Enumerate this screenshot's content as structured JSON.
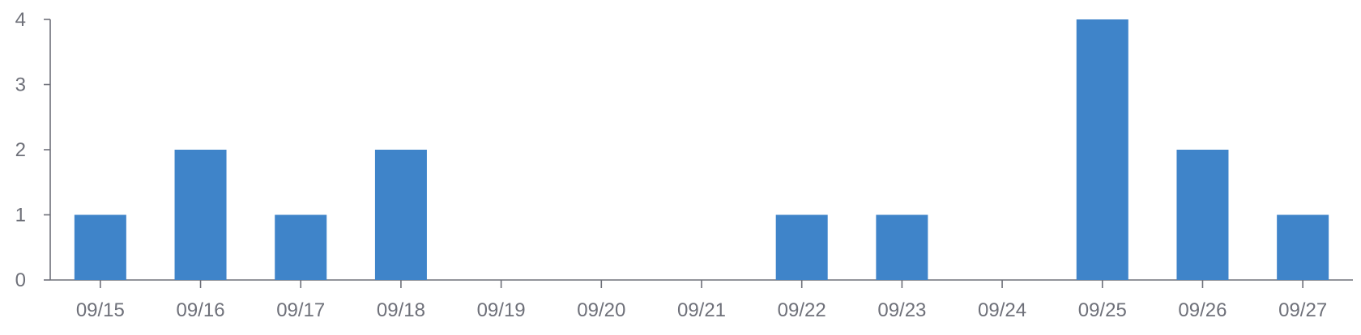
{
  "chart_data": {
    "type": "bar",
    "title": "",
    "xlabel": "",
    "ylabel": "",
    "categories": [
      "09/15",
      "09/16",
      "09/17",
      "09/18",
      "09/19",
      "09/20",
      "09/21",
      "09/22",
      "09/23",
      "09/24",
      "09/25",
      "09/26",
      "09/27"
    ],
    "values": [
      1,
      2,
      1,
      2,
      0,
      0,
      0,
      1,
      1,
      0,
      4,
      2,
      1
    ],
    "ylim": [
      0,
      4
    ],
    "yticks": [
      0,
      1,
      2,
      3,
      4
    ],
    "grid": false,
    "legend": "none",
    "bar_color": "#3f84c9",
    "axis_color": "#6e7079"
  }
}
